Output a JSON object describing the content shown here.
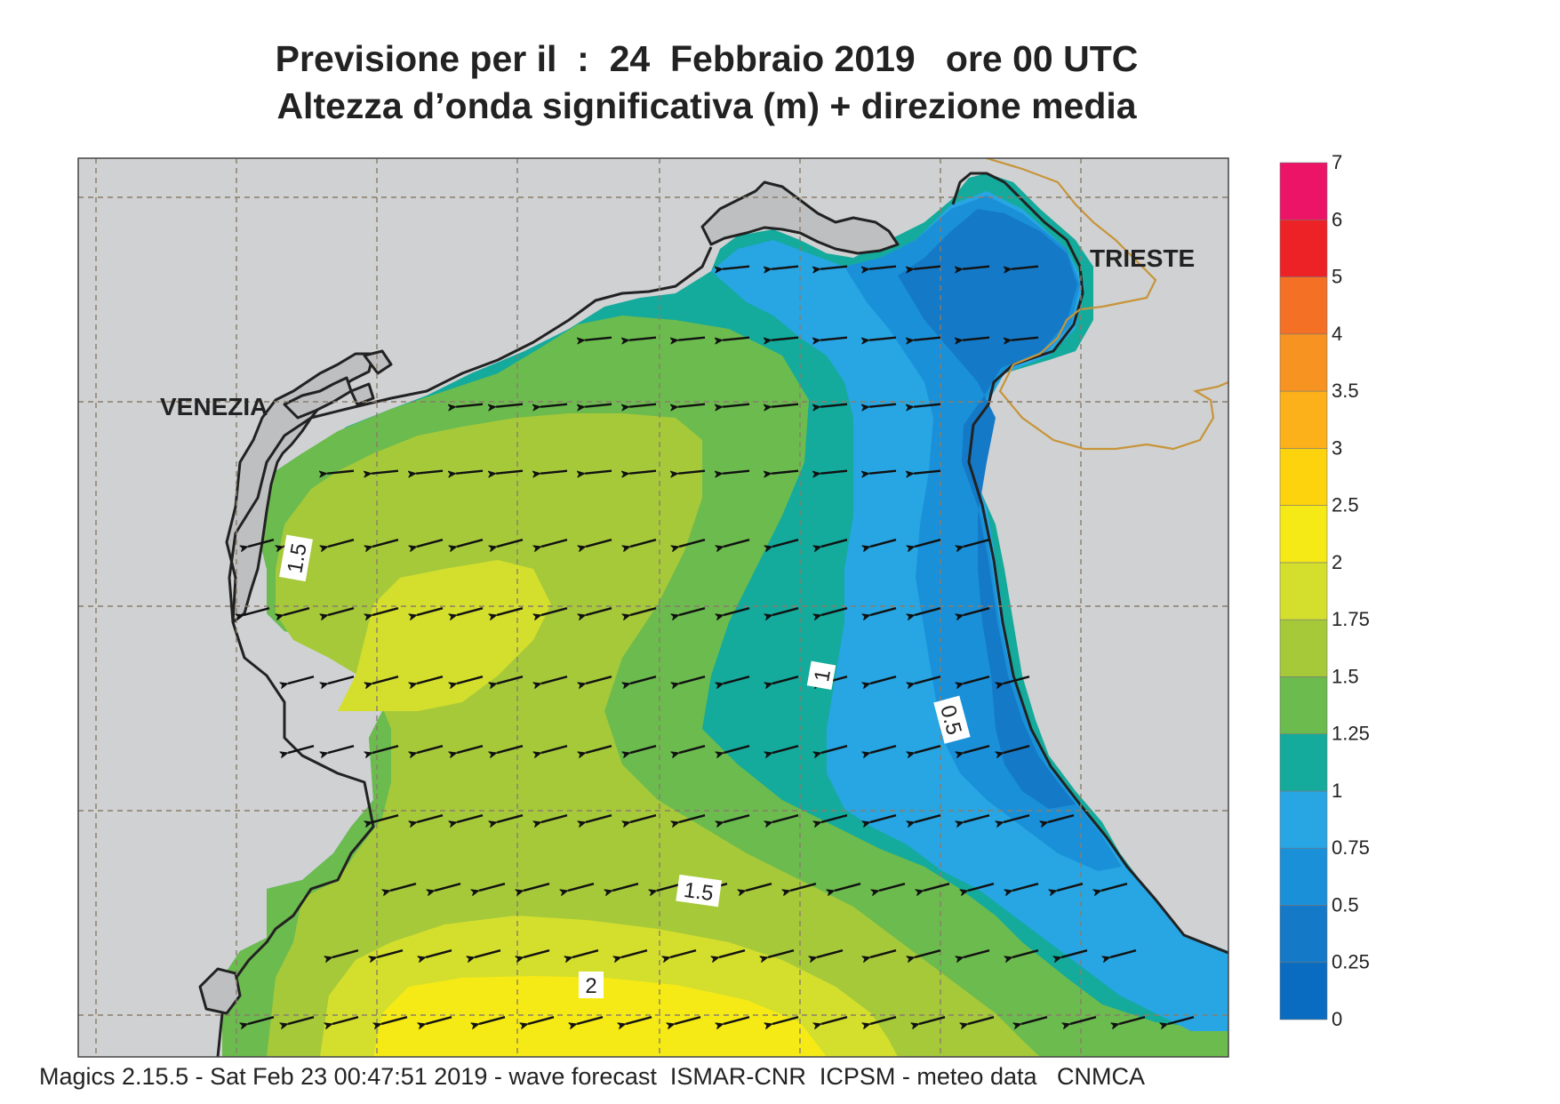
{
  "title": {
    "line1": "Previsione per il  :  24  Febbraio 2019   ore 00 UTC",
    "line2": "Altezza d’onda significativa (m) + direzione media"
  },
  "places": {
    "venezia": "VENEZIA",
    "trieste": "TRIESTE"
  },
  "contour_labels": [
    "1.5",
    "1",
    "0.5",
    "1.5",
    "2"
  ],
  "legend": {
    "levels": [
      "0",
      "0.25",
      "0.5",
      "0.75",
      "1",
      "1.25",
      "1.5",
      "1.75",
      "2",
      "2.5",
      "3",
      "3.5",
      "4",
      "5",
      "6",
      "7"
    ],
    "colors": [
      "#0a6cc0",
      "#1479c7",
      "#1a90d9",
      "#27a6e3",
      "#14aa9c",
      "#6cbb4e",
      "#a6c93a",
      "#d4df2d",
      "#f5ea16",
      "#fdd30d",
      "#fcb01a",
      "#f79320",
      "#f37024",
      "#ed2227",
      "#ec1467"
    ]
  },
  "map_colors": {
    "land": "#cfd1d2",
    "lagoon_land": "#bebfc1",
    "coast": "#222222",
    "border": "#c89439",
    "grid": "#8a7d6b"
  },
  "footer": "Magics 2.15.5 - Sat Feb 23 00:47:51 2019 - wave forecast  ISMAR-CNR  ICPSM - meteo data   CNMCA"
}
